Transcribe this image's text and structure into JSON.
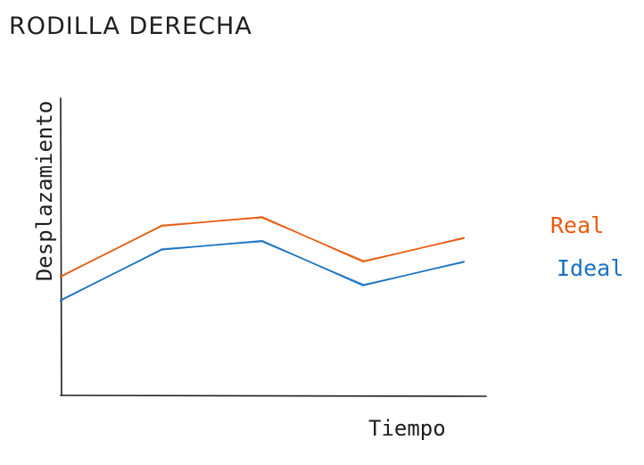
{
  "chart_data": {
    "type": "line",
    "title": "RODILLA DERECHA",
    "xlabel": "Tiempo",
    "ylabel": "Desplazamiento",
    "x": [
      1,
      2,
      3,
      4,
      5
    ],
    "ylim": [
      0,
      100
    ],
    "grid": false,
    "legend_position": "right",
    "series": [
      {
        "name": "Real",
        "color": "#e8590c",
        "values": [
          40,
          57,
          60,
          45,
          53
        ]
      },
      {
        "name": "Ideal",
        "color": "#1971c2",
        "values": [
          32,
          49,
          52,
          37,
          45
        ]
      }
    ]
  }
}
